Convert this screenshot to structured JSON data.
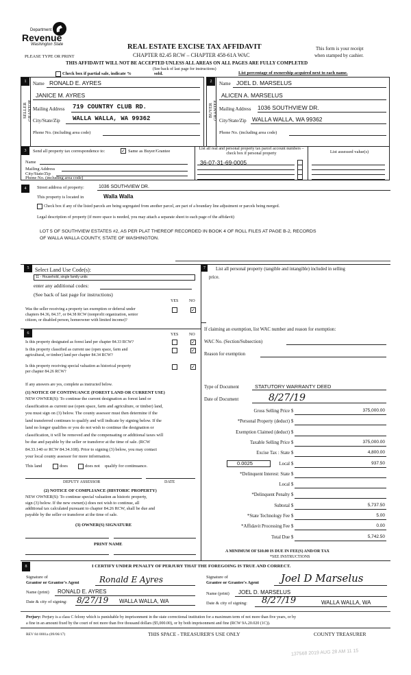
{
  "header": {
    "logo_dept": "Department of",
    "logo_revenue": "Revenue",
    "logo_state": "Washington State",
    "title": "REAL ESTATE EXCISE TAX AFFIDAVIT",
    "chapter": "CHAPTER 82.45 RCW – CHAPTER 458-61A WAC",
    "please": "PLEASE TYPE OR PRINT",
    "receipt1": "This form is your receipt",
    "receipt2": "when stamped by cashier.",
    "warning": "THIS AFFIDAVIT WILL NOT BE ACCEPTED UNLESS ALL AREAS ON ALL PAGES ARE FULLY COMPLETED",
    "see_back": "(See back of last page for instructions)",
    "partial_label": "Check box if partial sale, indicate %",
    "sold": "sold.",
    "ownership_note": "List percentage of ownership acquired next to each name."
  },
  "seller": {
    "num": "1",
    "side": "SELLER GRANTOR",
    "name_label": "Name",
    "name": "RONALD E. AYRES",
    "name2": "JANICE M. AYRES",
    "mail_label": "Mailing Address",
    "mail": "719 COUNTRY CLUB RD.",
    "city_label": "City/State/Zip",
    "city": "WALLA WALLA, WA 99362",
    "phone_label": "Phone No. (including area code)"
  },
  "buyer": {
    "num": "2",
    "side": "BUYER GRANTEE",
    "name_label": "Name",
    "name": "JOEL D. MARSELUS",
    "name2": "ALICEN A. MARSELUS",
    "mail_label": "Mailing Address",
    "mail": "1036 SOUTHVIEW DR.",
    "city_label": "City/State/Zip",
    "city": "WALLA WALLA, WA 99362",
    "phone_label": "Phone No. (including area code)"
  },
  "sec3": {
    "num": "3",
    "send_label": "Send all property tax correspondence to:",
    "same_label": "Same as Buyer/Grantee",
    "same_checked": true,
    "name_label": "Name",
    "mail_label": "Mailing Address",
    "city_label": "City/State/Zip",
    "phone_label": "Phone No. (including area code)",
    "parcel_header": "List all real and personal property tax parcel account numbers – check box if personal property",
    "assessed_header": "List assessed value(s)",
    "parcels": [
      "36-07-31-69-0005"
    ]
  },
  "sec4": {
    "num": "4",
    "street_label": "Street address of property:",
    "street": "1036 SOUTHVIEW DR.",
    "located_label": "This property is located in",
    "located": "Walla Walla",
    "segregated_label": "Check box if any of the listed parcels are being segregated from another parcel, are part of a boundary line adjustment or parcels being merged.",
    "legal_label": "Legal description of property (if more space is needed, you may attach a separate sheet to each page of the affidavit)",
    "legal1": "LOT 5 OF SOUTHVIEW ESTATES #2, AS PER PLAT THEREOF RECORDED IN BOOK 4 OF ROLL FILES AT PAGE B-2, RECORDS",
    "legal2": "OF WALLA WALLA COUNTY, STATE OF WASHINGTON."
  },
  "sec5": {
    "num": "5",
    "select_label": "Select Land Use Code(s):",
    "code": "11 - Household, single family units",
    "additional": "enter any additional codes:",
    "see_back": "(See back of last page for instructions)",
    "yes": "YES",
    "no": "NO",
    "q1": "Was the seller receiving a property tax exemption or deferral under",
    "q1b": "chapters 84.36, 84.37, or 84.38 RCW (nonprofit organization, senior",
    "q1c": "citizen, or disabled person, homeowner with limited income)?"
  },
  "sec6": {
    "num": "6",
    "yes": "YES",
    "no": "NO",
    "q1": "Is this property designated as forest land per chapter 84.33 RCW?",
    "q2": "Is this property classified as current use (open space, farm and",
    "q2b": "agricultural, or timber) land per chapter 84.34 RCW?",
    "q3": "Is this property receiving special valuation as historical property",
    "q3b": "per chapter 84.26 RCW?",
    "if_yes": "If any answers are yes, complete as instructed below.",
    "n1_title": "(1) NOTICE OF CONTINUANCE  (FOREST LAND OR CURRENT USE)",
    "n1_lines": [
      "NEW OWNER(S): To continue the current designation as forest land or",
      "classification as current use (open space, farm and agriculture, or timber) land,",
      "you must sign on (3) below. The county assessor must then determine if the",
      "land transferred continues to qualify and will indicate by signing below. If the",
      "land no longer qualifies or you do not wish to continue the designation or",
      "classification, it will be removed and the compensating or additional taxes will",
      "be due and payable by the seller or transferor at the time of sale. (RCW",
      "84.33.140 or RCW 84.34.108). Prior to signing (3) below, you may contact",
      "your local county assessor for more information."
    ],
    "this_land": "This land",
    "does": "does",
    "does_not": "does not",
    "qualify": "qualify for continuance.",
    "deputy": "DEPUTY ASSESSOR",
    "date": "DATE",
    "n2_title": "(2) NOTICE OF COMPLIANCE (HISTORIC PROPERTY)",
    "n2_lines": [
      "NEW OWNER(S): To continue special valuation as historic property,",
      "sign (3) below. If the new owner(s) does not wish to continue, all",
      "additional tax calculated pursuant to chapter 84.26 RCW, shall be due and",
      "payable by the seller or transferor at the time of sale."
    ],
    "owner_sig": "(3)  OWNER(S) SIGNATURE",
    "print_name": "PRINT NAME"
  },
  "sec7": {
    "num": "7",
    "list_label": "List all  personal property (tangible and intangible) included in selling",
    "list_label2": "price.",
    "exempt_label": "If claiming an exemption, list WAC number and reason for exemption:",
    "wac_label": "WAC No. (Section/Subsection)",
    "reason_label": "Reason for exemption",
    "type_label": "Type of Document",
    "type": "STATUTORY WARRANTY DEED",
    "date_label": "Date of Document",
    "date": "8/27/19",
    "amounts": [
      {
        "label": "Gross Selling Price",
        "value": "375,000.00"
      },
      {
        "label": "*Personal Property (deduct)",
        "value": ""
      },
      {
        "label": "Exemption Claimed (deduct)",
        "value": ""
      },
      {
        "label": "Taxable Selling Price",
        "value": "375,000.00"
      },
      {
        "label": "Excise Tax : State",
        "value": "4,800.00"
      },
      {
        "label": "Local",
        "value": "937.50"
      },
      {
        "label": "*Delinquent Interest: State",
        "value": ""
      },
      {
        "label": "Local",
        "value": ""
      },
      {
        "label": "*Delinquent Penalty",
        "value": ""
      },
      {
        "label": "Subtotal",
        "value": "5,737.50"
      },
      {
        "label": "*State Technology Fee",
        "value": "5.00"
      },
      {
        "label": "*Affidavit Processing Fee",
        "value": "0.00"
      },
      {
        "label": "Total Due",
        "value": "5,742.50"
      }
    ],
    "local_rate": "0.0025",
    "dollar": "$",
    "minimum": "A MINIMUM OF $10.00 IS DUE IN FEE(S) AND/OR TAX",
    "see_instr": "*SEE INSTRUCTIONS"
  },
  "sec8": {
    "num": "8",
    "certify": "I CERTIFY UNDER PENALTY OF PERJURY THAT THE FOREGOING IS TRUE AND CORRECT.",
    "sig_of": "Signature of",
    "grantor_label": "Grantor or Grantor's Agent",
    "grantor_sig": "Ronald E Ayres",
    "grantee_label": "Grantee or Grantee's Agent",
    "grantee_sig": "Joel D Marselus",
    "name_label": "Name (print)",
    "grantor_name": "RONALD E. AYRES",
    "grantee_name": "JOEL D. MARSELUS",
    "date_label": "Date & city of signing:",
    "grantor_date": "8/27/19",
    "grantor_city": "WALLA WALLA, WA",
    "grantee_date": "8/27/19",
    "grantee_city": "WALLA WALLA, WA"
  },
  "footer": {
    "perjury_bold": "Perjury:",
    "perjury1": "Perjury is a class C felony which is punishable by imprisonment in the state correctional institution for a maximum term of not more than five years, or by",
    "perjury2": "a fine in an amount fixed by the court of not more than five thousand dollars ($5,000.00), or by both imprisonment and fine (RCW 9A.20.020 (1C)).",
    "form_no": "REV 84 0001a (09/06/17)",
    "treasurer_use": "THIS SPACE - TREASURER'S USE ONLY",
    "county_treasurer": "COUNTY TREASURER",
    "stamp": "137568 2019 AUG 28 AM 11 15"
  }
}
